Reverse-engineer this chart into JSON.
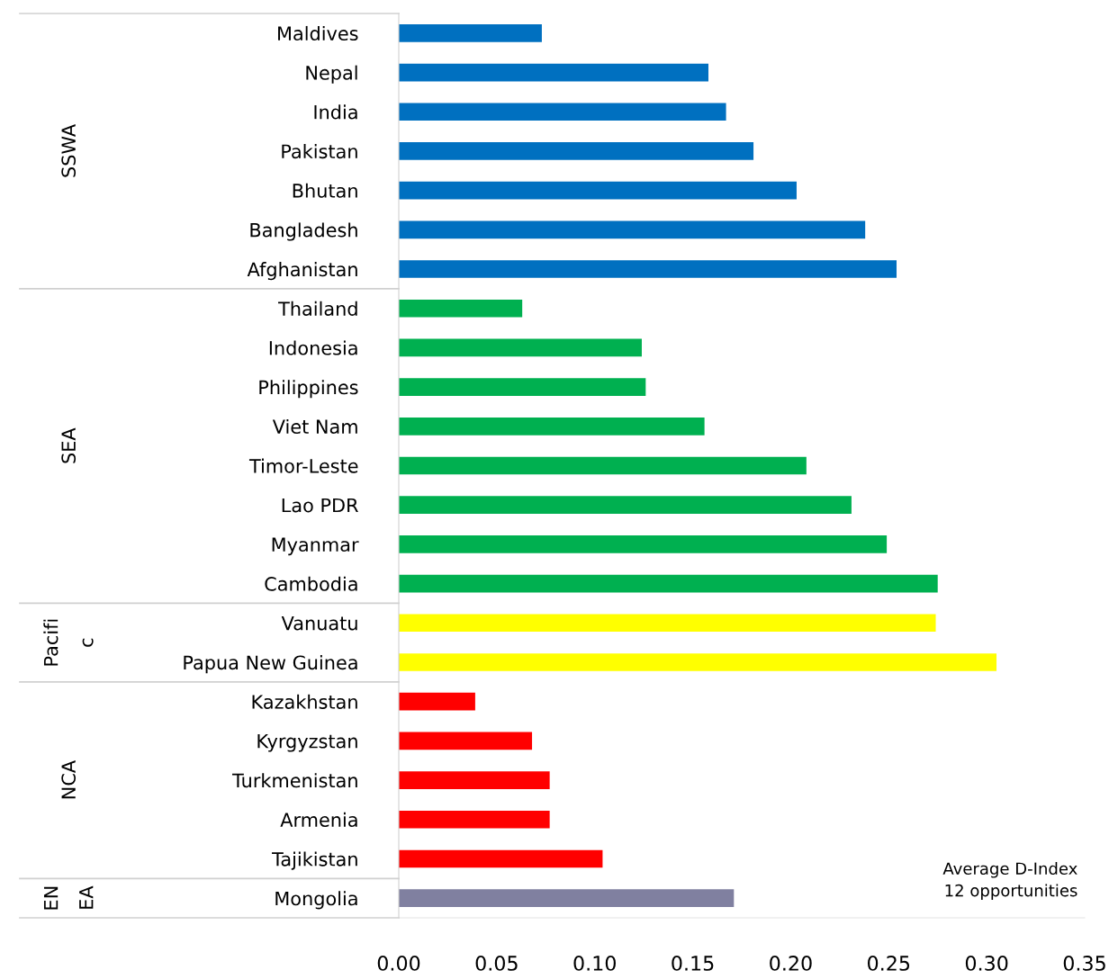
{
  "chart_data": {
    "type": "bar",
    "orientation": "horizontal",
    "categories": [
      "Maldives",
      "Nepal",
      "India",
      "Pakistan",
      "Bhutan",
      "Bangladesh",
      "Afghanistan",
      "Thailand",
      "Indonesia",
      "Philippines",
      "Viet Nam",
      "Timor-Leste",
      "Lao PDR",
      "Myanmar",
      "Cambodia",
      "Vanuatu",
      "Papua New Guinea",
      "Kazakhstan",
      "Kyrgyzstan",
      "Turkmenistan",
      "Armenia",
      "Tajikistan",
      "Mongolia"
    ],
    "values": [
      0.073,
      0.158,
      0.167,
      0.181,
      0.203,
      0.238,
      0.254,
      0.063,
      0.124,
      0.126,
      0.156,
      0.208,
      0.231,
      0.249,
      0.275,
      0.274,
      0.305,
      0.039,
      0.068,
      0.077,
      0.077,
      0.104,
      0.171
    ],
    "colors": [
      "#0070c0",
      "#0070c0",
      "#0070c0",
      "#0070c0",
      "#0070c0",
      "#0070c0",
      "#0070c0",
      "#00b050",
      "#00b050",
      "#00b050",
      "#00b050",
      "#00b050",
      "#00b050",
      "#00b050",
      "#00b050",
      "#ffff00",
      "#ffff00",
      "#ff0000",
      "#ff0000",
      "#ff0000",
      "#ff0000",
      "#ff0000",
      "#8080a0"
    ],
    "xlim": [
      0,
      0.35
    ],
    "xticks": [
      {
        "value": 0,
        "label": "0.00"
      },
      {
        "value": 0.05,
        "label": "0.05"
      },
      {
        "value": 0.1,
        "label": "0.10"
      },
      {
        "value": 0.15,
        "label": "0.15"
      },
      {
        "value": 0.2,
        "label": "0.20"
      },
      {
        "value": 0.25,
        "label": "0.25"
      },
      {
        "value": 0.3,
        "label": "0.30"
      },
      {
        "value": 0.35,
        "label": "0.35"
      }
    ],
    "grid": false,
    "legend": false,
    "annotations": [
      "SSWA",
      "SEA",
      "Pacifi\nc",
      "NCA",
      "EN\nEA",
      "Average D-Index\n12 opportunities"
    ]
  }
}
